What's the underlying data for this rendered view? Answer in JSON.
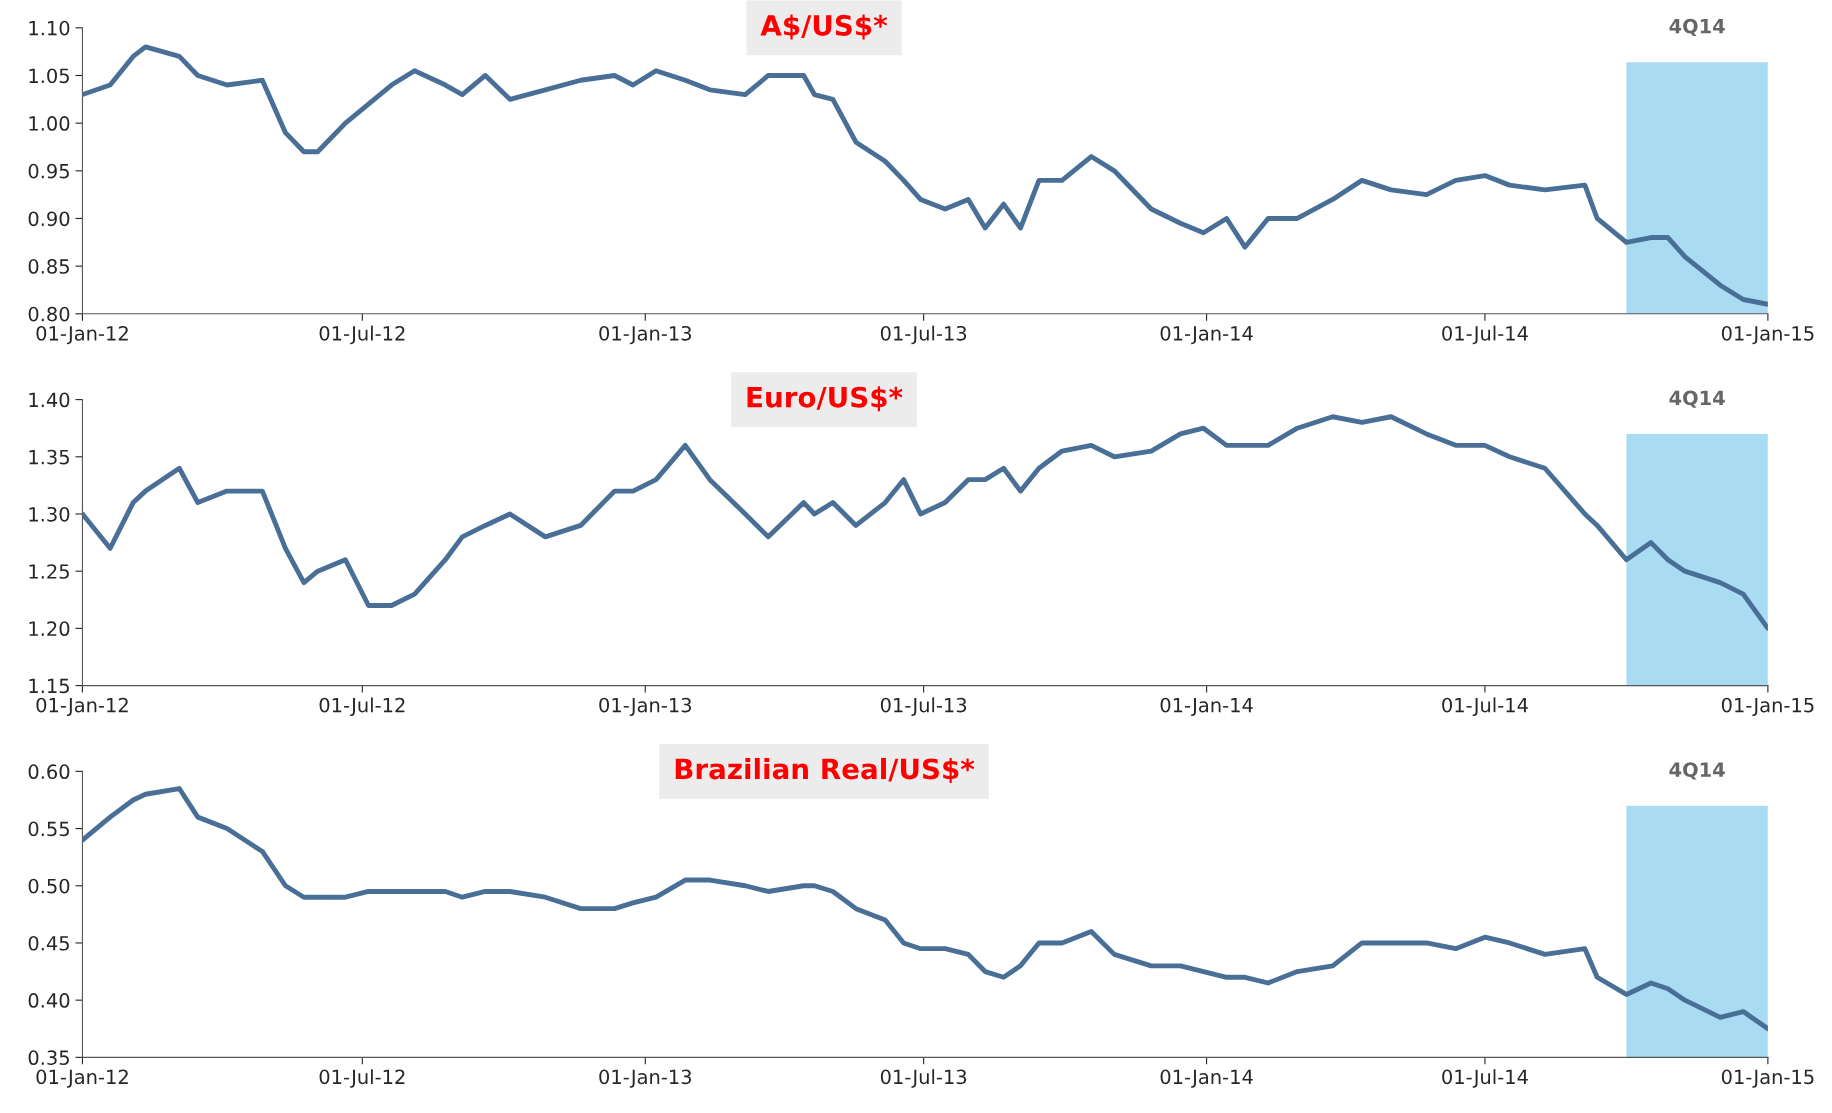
{
  "chart_data": [
    {
      "type": "line",
      "title": "A$/US$*",
      "x": [
        "2012-01-01",
        "2012-01-19",
        "2012-02-03",
        "2012-02-11",
        "2012-03-04",
        "2012-03-16",
        "2012-04-04",
        "2012-04-27",
        "2012-05-12",
        "2012-05-24",
        "2012-06-02",
        "2012-06-20",
        "2012-07-05",
        "2012-07-20",
        "2012-08-04",
        "2012-08-24",
        "2012-09-04",
        "2012-09-19",
        "2012-10-05",
        "2012-10-28",
        "2012-11-20",
        "2012-12-12",
        "2012-12-24",
        "2013-01-08",
        "2013-01-27",
        "2013-02-12",
        "2013-03-07",
        "2013-03-22",
        "2013-04-14",
        "2013-04-21",
        "2013-05-03",
        "2013-05-18",
        "2013-06-06",
        "2013-06-18",
        "2013-06-29",
        "2013-07-15",
        "2013-07-30",
        "2013-08-10",
        "2013-08-22",
        "2013-09-02",
        "2013-09-14",
        "2013-09-29",
        "2013-10-18",
        "2013-11-02",
        "2013-11-26",
        "2013-12-15",
        "2013-12-30",
        "2014-01-14",
        "2014-01-26",
        "2014-02-10",
        "2014-03-01",
        "2014-03-24",
        "2014-04-12",
        "2014-05-01",
        "2014-05-24",
        "2014-06-12",
        "2014-07-01",
        "2014-07-17",
        "2014-08-09",
        "2014-09-04",
        "2014-09-12",
        "2014-10-01",
        "2014-10-17",
        "2014-10-28",
        "2014-11-08",
        "2014-12-01",
        "2014-12-16",
        "2015-01-01"
      ],
      "series": [
        {
          "color": "#4a6f96",
          "values": [
            1.03,
            1.04,
            1.07,
            1.08,
            1.07,
            1.05,
            1.04,
            1.045,
            0.99,
            0.97,
            0.97,
            1.0,
            1.02,
            1.04,
            1.055,
            1.04,
            1.03,
            1.05,
            1.025,
            1.035,
            1.045,
            1.05,
            1.04,
            1.055,
            1.045,
            1.035,
            1.03,
            1.05,
            1.05,
            1.03,
            1.025,
            0.98,
            0.96,
            0.94,
            0.92,
            0.91,
            0.92,
            0.89,
            0.915,
            0.89,
            0.94,
            0.94,
            0.965,
            0.95,
            0.91,
            0.895,
            0.885,
            0.9,
            0.87,
            0.9,
            0.9,
            0.92,
            0.94,
            0.93,
            0.925,
            0.94,
            0.945,
            0.935,
            0.93,
            0.935,
            0.9,
            0.875,
            0.88,
            0.88,
            0.86,
            0.83,
            0.815,
            0.81
          ]
        }
      ],
      "xlim": [
        "2012-01-01",
        "2015-01-01"
      ],
      "xticks": [
        {
          "value": "2012-01-01",
          "label": "01-Jan-12"
        },
        {
          "value": "2012-07-01",
          "label": "01-Jul-12"
        },
        {
          "value": "2013-01-01",
          "label": "01-Jan-13"
        },
        {
          "value": "2013-07-01",
          "label": "01-Jul-13"
        },
        {
          "value": "2014-01-01",
          "label": "01-Jan-14"
        },
        {
          "value": "2014-07-01",
          "label": "01-Jul-14"
        },
        {
          "value": "2015-01-01",
          "label": "01-Jan-15"
        }
      ],
      "ylim": [
        0.8,
        1.1
      ],
      "yticks": [
        {
          "value": 0.8,
          "label": "0.80"
        },
        {
          "value": 0.85,
          "label": "0.85"
        },
        {
          "value": 0.9,
          "label": "0.90"
        },
        {
          "value": 0.95,
          "label": "0.95"
        },
        {
          "value": 1.0,
          "label": "1.00"
        },
        {
          "value": 1.05,
          "label": "1.05"
        },
        {
          "value": 1.1,
          "label": "1.10"
        }
      ],
      "bands": [
        {
          "axis": "x",
          "from": "2014-10-01",
          "to": "2015-01-01",
          "label": "4Q14",
          "color": "#a9dcf2"
        }
      ],
      "grid": false,
      "legend": false,
      "marker": "none",
      "line_style": "solid"
    },
    {
      "type": "line",
      "title": "Euro/US$*",
      "x": [
        "2012-01-01",
        "2012-01-19",
        "2012-02-03",
        "2012-02-11",
        "2012-03-04",
        "2012-03-16",
        "2012-04-04",
        "2012-04-27",
        "2012-05-12",
        "2012-05-24",
        "2012-06-02",
        "2012-06-20",
        "2012-07-05",
        "2012-07-20",
        "2012-08-04",
        "2012-08-24",
        "2012-09-04",
        "2012-09-19",
        "2012-10-05",
        "2012-10-28",
        "2012-11-20",
        "2012-12-12",
        "2012-12-24",
        "2013-01-08",
        "2013-01-27",
        "2013-02-12",
        "2013-03-07",
        "2013-03-22",
        "2013-04-14",
        "2013-04-21",
        "2013-05-03",
        "2013-05-18",
        "2013-06-06",
        "2013-06-18",
        "2013-06-29",
        "2013-07-15",
        "2013-07-30",
        "2013-08-10",
        "2013-08-22",
        "2013-09-02",
        "2013-09-14",
        "2013-09-29",
        "2013-10-18",
        "2013-11-02",
        "2013-11-26",
        "2013-12-15",
        "2013-12-30",
        "2014-01-14",
        "2014-01-26",
        "2014-02-10",
        "2014-03-01",
        "2014-03-24",
        "2014-04-12",
        "2014-05-01",
        "2014-05-24",
        "2014-06-12",
        "2014-07-01",
        "2014-07-17",
        "2014-08-09",
        "2014-09-04",
        "2014-09-12",
        "2014-10-01",
        "2014-10-17",
        "2014-10-28",
        "2014-11-08",
        "2014-12-01",
        "2014-12-16",
        "2015-01-01"
      ],
      "series": [
        {
          "color": "#4a6f96",
          "values": [
            1.3,
            1.27,
            1.31,
            1.32,
            1.34,
            1.31,
            1.32,
            1.32,
            1.27,
            1.24,
            1.25,
            1.26,
            1.22,
            1.22,
            1.23,
            1.26,
            1.28,
            1.29,
            1.3,
            1.28,
            1.29,
            1.32,
            1.32,
            1.33,
            1.36,
            1.33,
            1.3,
            1.28,
            1.31,
            1.3,
            1.31,
            1.29,
            1.31,
            1.33,
            1.3,
            1.31,
            1.33,
            1.33,
            1.34,
            1.32,
            1.34,
            1.355,
            1.36,
            1.35,
            1.355,
            1.37,
            1.375,
            1.36,
            1.36,
            1.36,
            1.375,
            1.385,
            1.38,
            1.385,
            1.37,
            1.36,
            1.36,
            1.35,
            1.34,
            1.3,
            1.29,
            1.26,
            1.275,
            1.26,
            1.25,
            1.24,
            1.23,
            1.2
          ]
        }
      ],
      "xlim": [
        "2012-01-01",
        "2015-01-01"
      ],
      "xticks": [
        {
          "value": "2012-01-01",
          "label": "01-Jan-12"
        },
        {
          "value": "2012-07-01",
          "label": "01-Jul-12"
        },
        {
          "value": "2013-01-01",
          "label": "01-Jan-13"
        },
        {
          "value": "2013-07-01",
          "label": "01-Jul-13"
        },
        {
          "value": "2014-01-01",
          "label": "01-Jan-14"
        },
        {
          "value": "2014-07-01",
          "label": "01-Jul-14"
        },
        {
          "value": "2015-01-01",
          "label": "01-Jan-15"
        }
      ],
      "ylim": [
        1.15,
        1.4
      ],
      "yticks": [
        {
          "value": 1.15,
          "label": "1.15"
        },
        {
          "value": 1.2,
          "label": "1.20"
        },
        {
          "value": 1.25,
          "label": "1.25"
        },
        {
          "value": 1.3,
          "label": "1.30"
        },
        {
          "value": 1.35,
          "label": "1.35"
        },
        {
          "value": 1.4,
          "label": "1.40"
        }
      ],
      "bands": [
        {
          "axis": "x",
          "from": "2014-10-01",
          "to": "2015-01-01",
          "label": "4Q14",
          "color": "#a9dcf2"
        }
      ],
      "grid": false,
      "legend": false,
      "marker": "none",
      "line_style": "solid"
    },
    {
      "type": "line",
      "title": "Brazilian Real/US$*",
      "x": [
        "2012-01-01",
        "2012-01-19",
        "2012-02-03",
        "2012-02-11",
        "2012-03-04",
        "2012-03-16",
        "2012-04-04",
        "2012-04-27",
        "2012-05-12",
        "2012-05-24",
        "2012-06-02",
        "2012-06-20",
        "2012-07-05",
        "2012-07-20",
        "2012-08-04",
        "2012-08-24",
        "2012-09-04",
        "2012-09-19",
        "2012-10-05",
        "2012-10-28",
        "2012-11-20",
        "2012-12-12",
        "2012-12-24",
        "2013-01-08",
        "2013-01-27",
        "2013-02-12",
        "2013-03-07",
        "2013-03-22",
        "2013-04-14",
        "2013-04-21",
        "2013-05-03",
        "2013-05-18",
        "2013-06-06",
        "2013-06-18",
        "2013-06-29",
        "2013-07-15",
        "2013-07-30",
        "2013-08-10",
        "2013-08-22",
        "2013-09-02",
        "2013-09-14",
        "2013-09-29",
        "2013-10-18",
        "2013-11-02",
        "2013-11-26",
        "2013-12-15",
        "2013-12-30",
        "2014-01-14",
        "2014-01-26",
        "2014-02-10",
        "2014-03-01",
        "2014-03-24",
        "2014-04-12",
        "2014-05-01",
        "2014-05-24",
        "2014-06-12",
        "2014-07-01",
        "2014-07-17",
        "2014-08-09",
        "2014-09-04",
        "2014-09-12",
        "2014-10-01",
        "2014-10-17",
        "2014-10-28",
        "2014-11-08",
        "2014-12-01",
        "2014-12-16",
        "2015-01-01"
      ],
      "series": [
        {
          "color": "#4a6f96",
          "values": [
            0.54,
            0.56,
            0.575,
            0.58,
            0.585,
            0.56,
            0.55,
            0.53,
            0.5,
            0.49,
            0.49,
            0.49,
            0.495,
            0.495,
            0.495,
            0.495,
            0.49,
            0.495,
            0.495,
            0.49,
            0.48,
            0.48,
            0.485,
            0.49,
            0.505,
            0.505,
            0.5,
            0.495,
            0.5,
            0.5,
            0.495,
            0.48,
            0.47,
            0.45,
            0.445,
            0.445,
            0.44,
            0.425,
            0.42,
            0.43,
            0.45,
            0.45,
            0.46,
            0.44,
            0.43,
            0.43,
            0.425,
            0.42,
            0.42,
            0.415,
            0.425,
            0.43,
            0.45,
            0.45,
            0.45,
            0.445,
            0.455,
            0.45,
            0.44,
            0.445,
            0.42,
            0.405,
            0.415,
            0.41,
            0.4,
            0.385,
            0.39,
            0.375
          ]
        }
      ],
      "xlim": [
        "2012-01-01",
        "2015-01-01"
      ],
      "xticks": [
        {
          "value": "2012-01-01",
          "label": "01-Jan-12"
        },
        {
          "value": "2012-07-01",
          "label": "01-Jul-12"
        },
        {
          "value": "2013-01-01",
          "label": "01-Jan-13"
        },
        {
          "value": "2013-07-01",
          "label": "01-Jul-13"
        },
        {
          "value": "2014-01-01",
          "label": "01-Jan-14"
        },
        {
          "value": "2014-07-01",
          "label": "01-Jul-14"
        },
        {
          "value": "2015-01-01",
          "label": "01-Jan-15"
        }
      ],
      "ylim": [
        0.35,
        0.6
      ],
      "yticks": [
        {
          "value": 0.35,
          "label": "0.35"
        },
        {
          "value": 0.4,
          "label": "0.40"
        },
        {
          "value": 0.45,
          "label": "0.45"
        },
        {
          "value": 0.5,
          "label": "0.50"
        },
        {
          "value": 0.55,
          "label": "0.55"
        },
        {
          "value": 0.6,
          "label": "0.60"
        }
      ],
      "bands": [
        {
          "axis": "x",
          "from": "2014-10-01",
          "to": "2015-01-01",
          "label": "4Q14",
          "color": "#a9dcf2"
        }
      ],
      "grid": false,
      "legend": false,
      "marker": "none",
      "line_style": "solid"
    }
  ]
}
